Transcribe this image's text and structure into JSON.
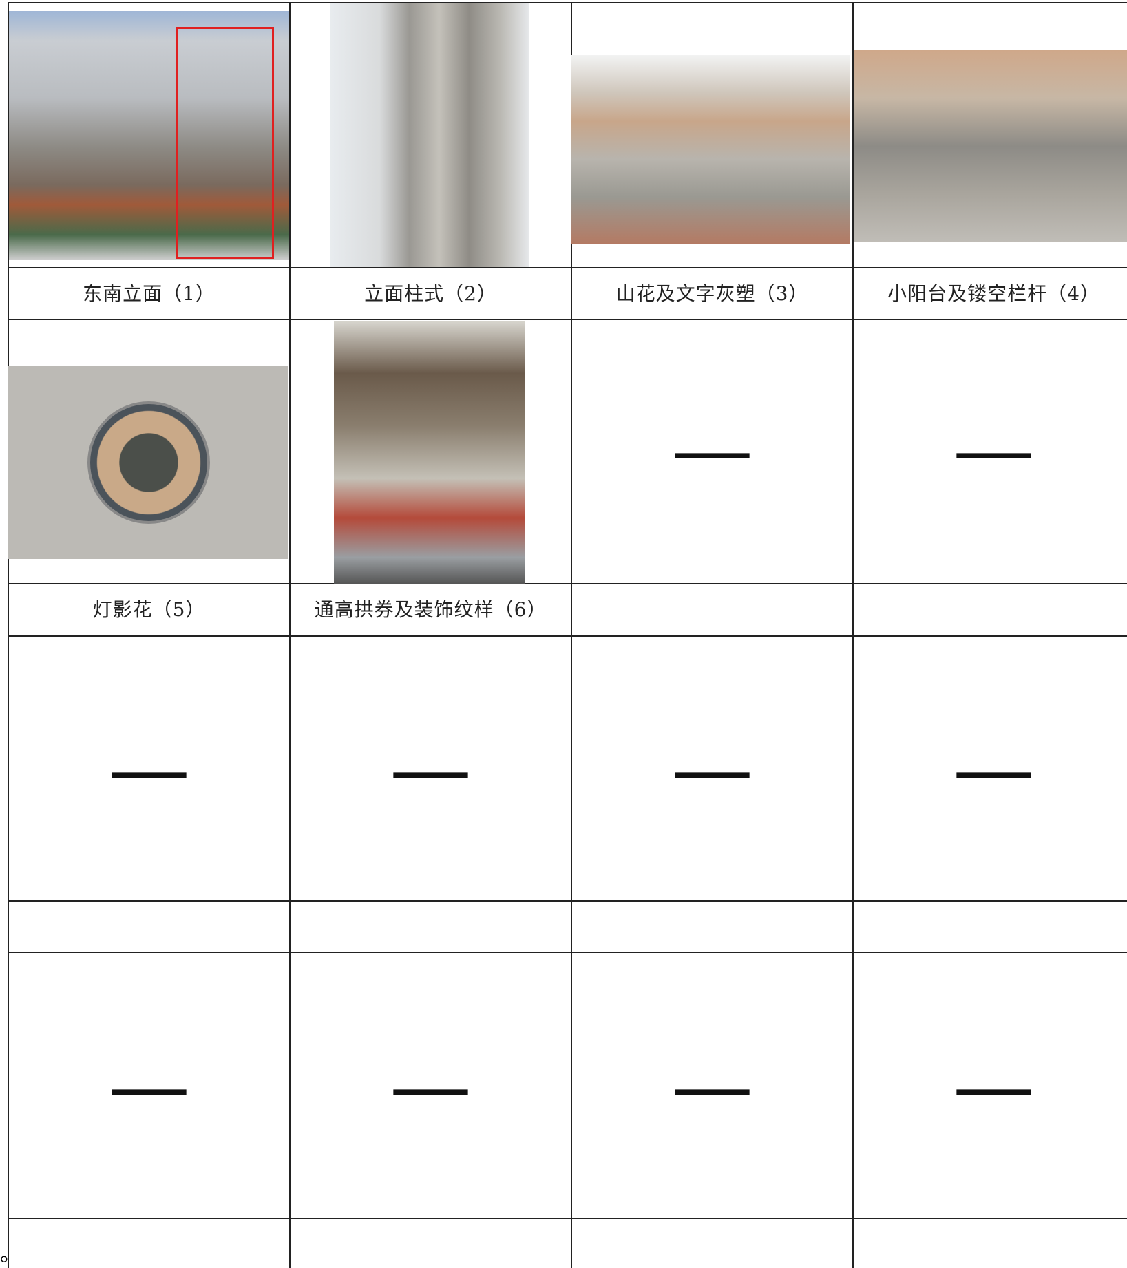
{
  "table": {
    "caption_row_1": [
      "东南立面（1）",
      "立面柱式（2）",
      "山花及文字灰塑（3）",
      "小阳台及镂空栏杆（4）"
    ],
    "caption_row_2": [
      "灯影花（5）",
      "通高拱券及装饰纹样（6）"
    ],
    "placeholder_row_2": [
      "—",
      "—"
    ],
    "placeholder_row_3": [
      "—",
      "—",
      "—",
      "—"
    ],
    "placeholder_row_4": [
      "—",
      "—",
      "—",
      "—"
    ]
  },
  "footnote": "。"
}
